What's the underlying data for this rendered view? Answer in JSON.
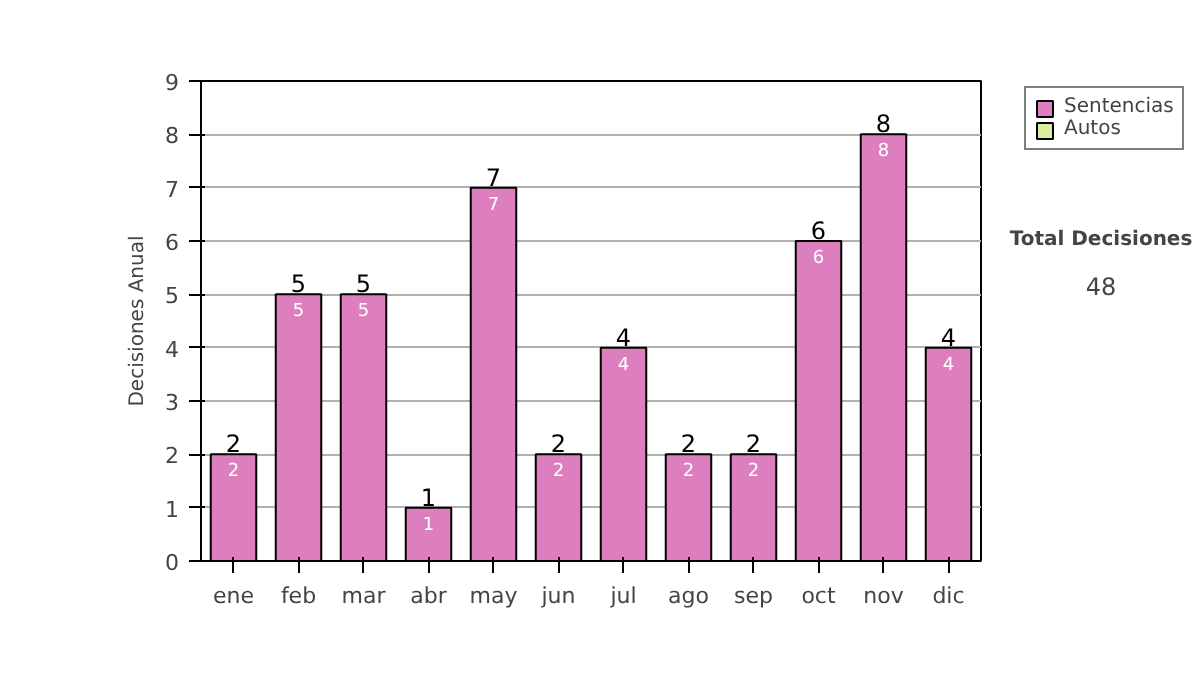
{
  "chart_data": {
    "type": "bar",
    "ylabel": "Decisiones Anual",
    "categories": [
      "ene",
      "feb",
      "mar",
      "abr",
      "may",
      "jun",
      "jul",
      "ago",
      "sep",
      "oct",
      "nov",
      "dic"
    ],
    "stacked": true,
    "series": [
      {
        "name": "Sentencias",
        "color": "#dd7fbf",
        "values": [
          2,
          5,
          5,
          1,
          7,
          2,
          4,
          2,
          2,
          6,
          8,
          4
        ],
        "value_labels": [
          "2",
          "5",
          "5",
          "1",
          "7",
          "2",
          "4",
          "2",
          "2",
          "6",
          "8",
          "4"
        ]
      },
      {
        "name": "Autos",
        "color": "#d9eea0",
        "values": [
          null,
          null,
          null,
          null,
          null,
          null,
          null,
          null,
          null,
          null,
          null,
          null
        ]
      }
    ],
    "totals": [
      "2",
      "5",
      "5",
      "1",
      "7",
      "2",
      "4",
      "2",
      "2",
      "6",
      "8",
      "4"
    ],
    "ylim": [
      0,
      9
    ],
    "yticks": [
      0,
      1,
      2,
      3,
      4,
      5,
      6,
      7,
      8,
      9
    ],
    "grid": "y",
    "legend": "right",
    "annotations": [
      "Total Decisiones",
      "48"
    ]
  }
}
